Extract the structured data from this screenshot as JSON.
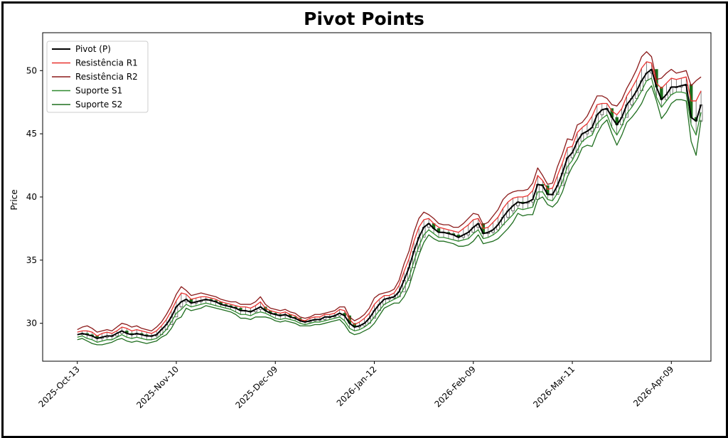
{
  "chart_data": {
    "type": "line",
    "title": "Pivot Points",
    "xlabel": "",
    "ylabel": "Price",
    "ylim": [
      27.0,
      53.0
    ],
    "y_ticks": [
      30,
      35,
      40,
      45,
      50
    ],
    "x_ticks": [
      "2025-Oct-13",
      "2025-Nov-10",
      "2025-Dec-09",
      "2026-Jan-12",
      "2026-Feb-09",
      "2026-Mar-11",
      "2026-Apr-09"
    ],
    "x_tick_index": [
      0,
      20,
      40,
      60,
      80,
      100,
      120
    ],
    "x_range": [
      -7,
      128
    ],
    "legend_position": "upper-left",
    "grid": false,
    "colors": {
      "pivot": "#000000",
      "r1": "#e8322f",
      "r2": "#8b1a1a",
      "s1": "#2f8a2f",
      "s2": "#1f6e1f",
      "candle_up": "#ffffff",
      "candle_down": "#1a6e1a"
    },
    "series": [
      {
        "name": "Pivot (P)",
        "key": "pivot",
        "values": [
          29.1,
          29.2,
          29.1,
          29.0,
          28.8,
          28.9,
          29.0,
          29.0,
          29.2,
          29.4,
          29.2,
          29.1,
          29.2,
          29.1,
          29.0,
          29.0,
          29.1,
          29.5,
          29.9,
          30.5,
          31.3,
          31.7,
          31.9,
          31.6,
          31.7,
          31.8,
          31.9,
          31.8,
          31.7,
          31.5,
          31.4,
          31.3,
          31.2,
          31.0,
          31.0,
          30.9,
          31.1,
          31.3,
          31.0,
          30.8,
          30.7,
          30.6,
          30.7,
          30.5,
          30.4,
          30.2,
          30.1,
          30.2,
          30.3,
          30.3,
          30.5,
          30.5,
          30.6,
          30.8,
          30.6,
          30.0,
          29.7,
          29.8,
          30.0,
          30.4,
          31.0,
          31.5,
          31.9,
          32.0,
          32.1,
          32.5,
          33.4,
          34.4,
          35.7,
          36.8,
          37.6,
          37.9,
          37.5,
          37.2,
          37.2,
          37.1,
          37.0,
          36.8,
          37.0,
          37.2,
          37.6,
          37.9,
          37.1,
          37.2,
          37.4,
          37.8,
          38.4,
          38.9,
          39.3,
          39.6,
          39.5,
          39.6,
          39.8,
          41.0,
          40.9,
          40.2,
          40.2,
          40.9,
          41.9,
          43.1,
          43.5,
          44.4,
          45.0,
          45.2,
          45.5,
          46.5,
          46.9,
          47.0,
          46.3,
          45.7,
          46.3,
          47.3,
          47.8,
          48.4,
          49.2,
          49.8,
          50.1,
          48.7,
          47.7,
          48.1,
          48.7,
          48.7,
          48.8,
          48.9,
          46.3,
          46.0,
          47.3
        ]
      },
      {
        "name": "Resistência R1",
        "key": "r1",
        "values": [
          29.3,
          29.4,
          29.4,
          29.3,
          29.0,
          29.2,
          29.3,
          29.2,
          29.4,
          29.7,
          29.6,
          29.4,
          29.5,
          29.4,
          29.3,
          29.2,
          29.4,
          29.8,
          30.3,
          31.0,
          31.8,
          32.4,
          32.3,
          31.9,
          32.0,
          32.1,
          32.1,
          32.0,
          31.9,
          31.7,
          31.6,
          31.5,
          31.4,
          31.3,
          31.3,
          31.2,
          31.4,
          31.7,
          31.2,
          31.0,
          30.9,
          30.8,
          30.9,
          30.7,
          30.6,
          30.3,
          30.2,
          30.4,
          30.5,
          30.5,
          30.7,
          30.7,
          30.8,
          31.1,
          31.0,
          30.3,
          29.9,
          30.1,
          30.4,
          30.8,
          31.5,
          31.9,
          32.2,
          32.2,
          32.4,
          33.0,
          34.1,
          35.1,
          36.5,
          37.6,
          38.2,
          38.3,
          37.9,
          37.6,
          37.5,
          37.4,
          37.3,
          37.2,
          37.5,
          37.8,
          38.2,
          38.3,
          37.5,
          37.6,
          38.0,
          38.4,
          39.1,
          39.6,
          39.9,
          40.0,
          40.0,
          40.1,
          40.5,
          41.7,
          41.3,
          40.6,
          40.7,
          41.7,
          42.7,
          43.9,
          44.0,
          45.1,
          45.5,
          45.8,
          46.4,
          47.3,
          47.4,
          47.4,
          46.8,
          46.5,
          47.0,
          48.0,
          48.6,
          49.3,
          50.2,
          50.7,
          50.6,
          49.0,
          48.6,
          49.0,
          49.4,
          49.3,
          49.4,
          49.5,
          47.6,
          47.6,
          48.4
        ]
      },
      {
        "name": "Resistência R2",
        "key": "r2",
        "values": [
          29.5,
          29.7,
          29.8,
          29.6,
          29.3,
          29.4,
          29.5,
          29.4,
          29.7,
          30.0,
          29.9,
          29.7,
          29.8,
          29.6,
          29.5,
          29.4,
          29.7,
          30.1,
          30.7,
          31.4,
          32.3,
          32.9,
          32.6,
          32.2,
          32.3,
          32.4,
          32.3,
          32.2,
          32.1,
          31.9,
          31.8,
          31.7,
          31.7,
          31.5,
          31.5,
          31.5,
          31.7,
          32.1,
          31.5,
          31.2,
          31.1,
          31.0,
          31.1,
          30.9,
          30.8,
          30.5,
          30.4,
          30.5,
          30.7,
          30.7,
          30.8,
          30.9,
          31.0,
          31.3,
          31.3,
          30.5,
          30.2,
          30.4,
          30.7,
          31.2,
          32.0,
          32.3,
          32.4,
          32.5,
          32.7,
          33.4,
          34.7,
          35.7,
          37.2,
          38.3,
          38.8,
          38.6,
          38.3,
          37.9,
          37.8,
          37.8,
          37.6,
          37.6,
          37.9,
          38.3,
          38.7,
          38.6,
          37.8,
          38.0,
          38.5,
          39.0,
          39.8,
          40.2,
          40.4,
          40.5,
          40.5,
          40.6,
          41.1,
          42.3,
          41.7,
          41.0,
          41.1,
          42.4,
          43.4,
          44.6,
          44.5,
          45.7,
          45.9,
          46.4,
          47.2,
          48.0,
          48.0,
          47.8,
          47.3,
          47.2,
          47.7,
          48.6,
          49.3,
          50.1,
          51.1,
          51.5,
          51.1,
          49.3,
          49.4,
          49.8,
          50.1,
          49.8,
          49.9,
          50.0,
          48.8,
          49.2,
          49.5
        ]
      },
      {
        "name": "Suporte S1",
        "key": "s1",
        "values": [
          28.9,
          29.0,
          28.8,
          28.7,
          28.5,
          28.6,
          28.7,
          28.7,
          28.9,
          29.1,
          28.9,
          28.8,
          28.9,
          28.8,
          28.7,
          28.7,
          28.8,
          29.1,
          29.5,
          30.1,
          30.8,
          31.1,
          31.5,
          31.3,
          31.4,
          31.5,
          31.6,
          31.5,
          31.4,
          31.3,
          31.2,
          31.1,
          30.9,
          30.7,
          30.7,
          30.6,
          30.8,
          30.9,
          30.8,
          30.6,
          30.4,
          30.3,
          30.4,
          30.3,
          30.2,
          30.0,
          29.9,
          30.0,
          30.1,
          30.1,
          30.2,
          30.3,
          30.4,
          30.5,
          30.2,
          29.6,
          29.4,
          29.5,
          29.7,
          30.0,
          30.5,
          31.0,
          31.5,
          31.7,
          31.9,
          32.1,
          32.8,
          33.6,
          34.9,
          36.1,
          37.0,
          37.4,
          37.1,
          36.8,
          36.8,
          36.7,
          36.6,
          36.5,
          36.6,
          36.7,
          37.1,
          37.4,
          36.7,
          36.8,
          37.0,
          37.3,
          37.8,
          38.2,
          38.6,
          39.1,
          39.0,
          39.1,
          39.2,
          40.4,
          40.4,
          39.8,
          39.7,
          40.3,
          41.2,
          42.4,
          42.9,
          43.7,
          44.4,
          44.7,
          44.9,
          45.8,
          46.2,
          46.5,
          45.5,
          44.9,
          45.6,
          46.6,
          47.1,
          47.7,
          48.4,
          49.2,
          49.4,
          47.9,
          47.1,
          47.6,
          48.1,
          48.3,
          48.3,
          48.2,
          45.7,
          44.9,
          46.7
        ]
      },
      {
        "name": "Suporte S2",
        "key": "s2",
        "values": [
          28.7,
          28.8,
          28.6,
          28.4,
          28.3,
          28.3,
          28.4,
          28.5,
          28.7,
          28.8,
          28.6,
          28.5,
          28.6,
          28.5,
          28.4,
          28.5,
          28.6,
          28.9,
          29.1,
          29.6,
          30.3,
          30.5,
          31.2,
          31.0,
          31.1,
          31.2,
          31.4,
          31.3,
          31.2,
          31.1,
          31.0,
          30.9,
          30.7,
          30.4,
          30.4,
          30.3,
          30.5,
          30.5,
          30.5,
          30.4,
          30.2,
          30.1,
          30.2,
          30.1,
          30.0,
          29.8,
          29.8,
          29.8,
          29.9,
          29.9,
          30.0,
          30.1,
          30.2,
          30.3,
          29.9,
          29.3,
          29.1,
          29.2,
          29.4,
          29.6,
          30.0,
          30.6,
          31.2,
          31.4,
          31.6,
          31.6,
          32.1,
          32.9,
          34.2,
          35.4,
          36.4,
          37.0,
          36.7,
          36.5,
          36.5,
          36.4,
          36.3,
          36.1,
          36.1,
          36.2,
          36.5,
          37.0,
          36.3,
          36.4,
          36.5,
          36.7,
          37.1,
          37.5,
          38.0,
          38.7,
          38.5,
          38.6,
          38.6,
          39.8,
          40.0,
          39.4,
          39.2,
          39.6,
          40.4,
          41.6,
          42.4,
          43.0,
          43.9,
          44.1,
          44.0,
          45.0,
          45.7,
          46.1,
          45.0,
          44.1,
          44.9,
          45.9,
          46.3,
          46.8,
          47.4,
          48.3,
          48.8,
          47.6,
          46.2,
          46.7,
          47.4,
          47.7,
          47.7,
          47.6,
          44.4,
          43.3,
          46.1
        ]
      }
    ]
  }
}
